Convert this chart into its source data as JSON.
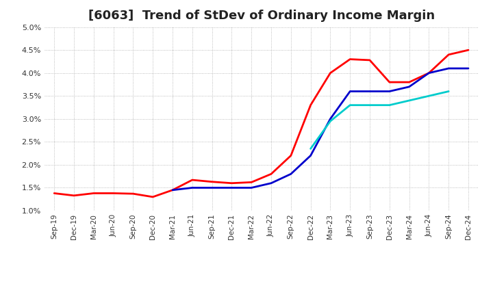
{
  "title": "[6063]  Trend of StDev of Ordinary Income Margin",
  "ylim": [
    0.01,
    0.05
  ],
  "yticks": [
    0.01,
    0.015,
    0.02,
    0.025,
    0.03,
    0.035,
    0.04,
    0.045,
    0.05
  ],
  "ytick_labels": [
    "1.0%",
    "1.5%",
    "2.0%",
    "2.5%",
    "3.0%",
    "3.5%",
    "4.0%",
    "4.5%",
    "5.0%"
  ],
  "xtick_labels": [
    "Sep-19",
    "Dec-19",
    "Mar-20",
    "Jun-20",
    "Sep-20",
    "Dec-20",
    "Mar-21",
    "Jun-21",
    "Sep-21",
    "Dec-21",
    "Mar-22",
    "Jun-22",
    "Sep-22",
    "Dec-22",
    "Mar-23",
    "Jun-23",
    "Sep-23",
    "Dec-23",
    "Mar-24",
    "Jun-24",
    "Sep-24",
    "Dec-24"
  ],
  "series": {
    "3 Years": {
      "color": "#FF0000",
      "data": [
        0.0138,
        0.0133,
        0.0138,
        0.0138,
        0.0137,
        0.013,
        0.0145,
        0.0167,
        0.0163,
        0.016,
        0.0162,
        0.018,
        0.022,
        0.033,
        0.04,
        0.043,
        0.0428,
        0.038,
        0.038,
        0.04,
        0.044,
        0.045
      ]
    },
    "5 Years": {
      "color": "#0000CC",
      "data": [
        null,
        null,
        null,
        null,
        null,
        null,
        0.0145,
        0.015,
        0.015,
        0.015,
        0.015,
        0.016,
        0.018,
        0.022,
        0.03,
        0.036,
        0.036,
        0.036,
        0.037,
        0.04,
        0.041,
        0.041
      ]
    },
    "7 Years": {
      "color": "#00CCCC",
      "data": [
        null,
        null,
        null,
        null,
        null,
        null,
        null,
        null,
        null,
        null,
        null,
        null,
        null,
        0.0235,
        0.0295,
        0.033,
        0.033,
        0.033,
        0.034,
        0.035,
        0.036,
        null
      ]
    },
    "10 Years": {
      "color": "#008000",
      "data": [
        null,
        null,
        null,
        null,
        null,
        null,
        null,
        null,
        null,
        null,
        null,
        null,
        null,
        null,
        null,
        null,
        null,
        null,
        null,
        null,
        null,
        null
      ]
    }
  },
  "background_color": "#FFFFFF",
  "plot_bg_color": "#FFFFFF",
  "grid_color": "#AAAAAA",
  "title_fontsize": 13,
  "legend_fontsize": 9,
  "line_width": 2.0
}
